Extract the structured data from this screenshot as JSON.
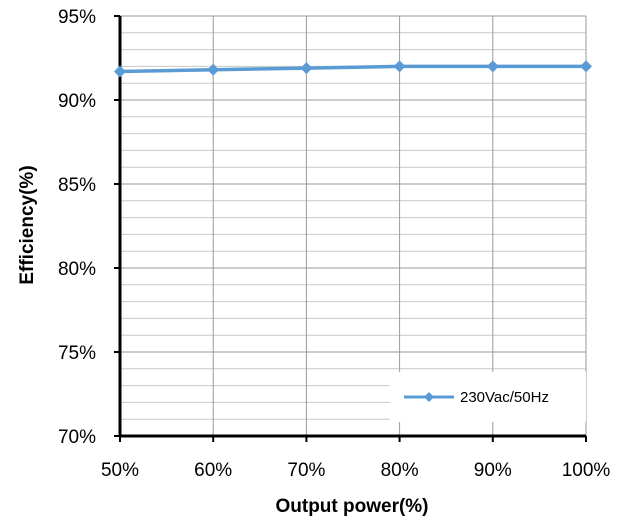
{
  "chart_data": {
    "type": "line",
    "title": "",
    "xlabel": "Output power(%)",
    "ylabel": "Efficiency(%)",
    "x": [
      50,
      60,
      70,
      80,
      90,
      100
    ],
    "x_tick_labels": [
      "50%",
      "60%",
      "70%",
      "80%",
      "90%",
      "100%"
    ],
    "ylim": [
      70,
      95
    ],
    "y_ticks": [
      70,
      75,
      80,
      85,
      90,
      95
    ],
    "y_tick_labels": [
      "70%",
      "75%",
      "80%",
      "85%",
      "90%",
      "95%"
    ],
    "grid": true,
    "legend_position": "bottom-right",
    "series": [
      {
        "name": "230Vac/50Hz",
        "color": "#5b9bd5",
        "marker": "diamond",
        "values": [
          91.7,
          91.8,
          91.9,
          92.0,
          92.0,
          92.0
        ]
      }
    ]
  }
}
